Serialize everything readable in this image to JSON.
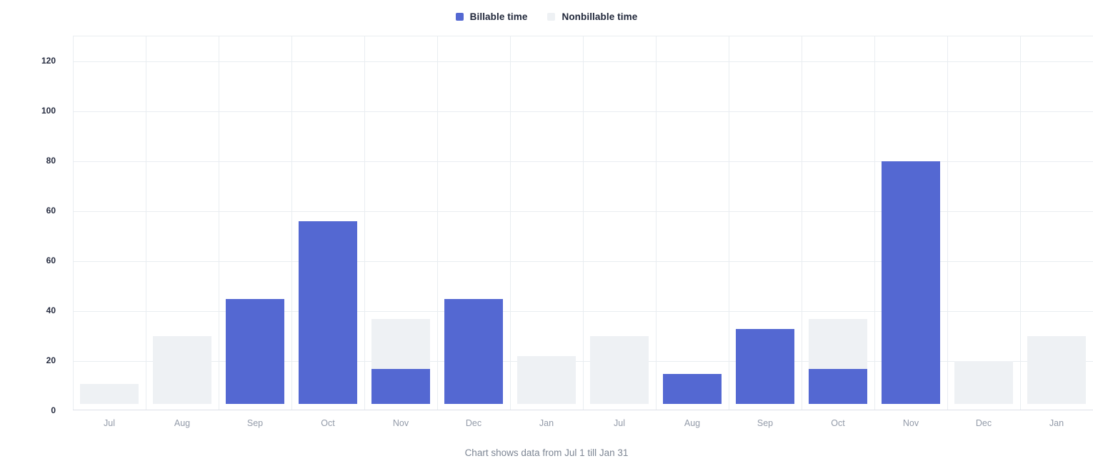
{
  "legend": {
    "items": [
      {
        "label": "Billable time",
        "color": "#5468d2"
      },
      {
        "label": "Nonbillable time",
        "color": "#eef1f4"
      }
    ]
  },
  "caption": "Chart shows data from Jul 1 till Jan 31",
  "chart_data": {
    "type": "bar",
    "title": "",
    "xlabel": "",
    "ylabel": "",
    "categories": [
      "Jul",
      "Aug",
      "Sep",
      "Oct",
      "Nov",
      "Dec",
      "Jan",
      "Jul",
      "Aug",
      "Sep",
      "Oct",
      "Nov",
      "Dec",
      "Jan"
    ],
    "series": [
      {
        "name": "Billable time",
        "color": "#5468d2",
        "values": [
          0,
          0,
          45,
          76,
          17,
          45,
          0,
          0,
          15,
          33,
          17,
          100,
          0,
          0
        ]
      },
      {
        "name": "Nonbillable time",
        "color": "#eef1f4",
        "values": [
          11,
          30,
          0,
          0,
          37,
          0,
          22,
          30,
          0,
          0,
          37,
          0,
          20,
          30
        ]
      }
    ],
    "bar_style": "overlapped-same-slot",
    "y_tick_labels_top_to_bottom": [
      "120",
      "100",
      "80",
      "60",
      "60",
      "40",
      "20",
      "0"
    ],
    "ylim": [
      0,
      130
    ],
    "grid": true,
    "legend_position": "top-center",
    "colors": {
      "grid_line": "#e9edf1",
      "axis_bottom_line": "#dce1e7",
      "y_tick_text": "#252b3f",
      "x_tick_text": "#929aa8",
      "caption_text": "#7d8694",
      "legend_text": "#20273a",
      "background": "#ffffff"
    }
  }
}
